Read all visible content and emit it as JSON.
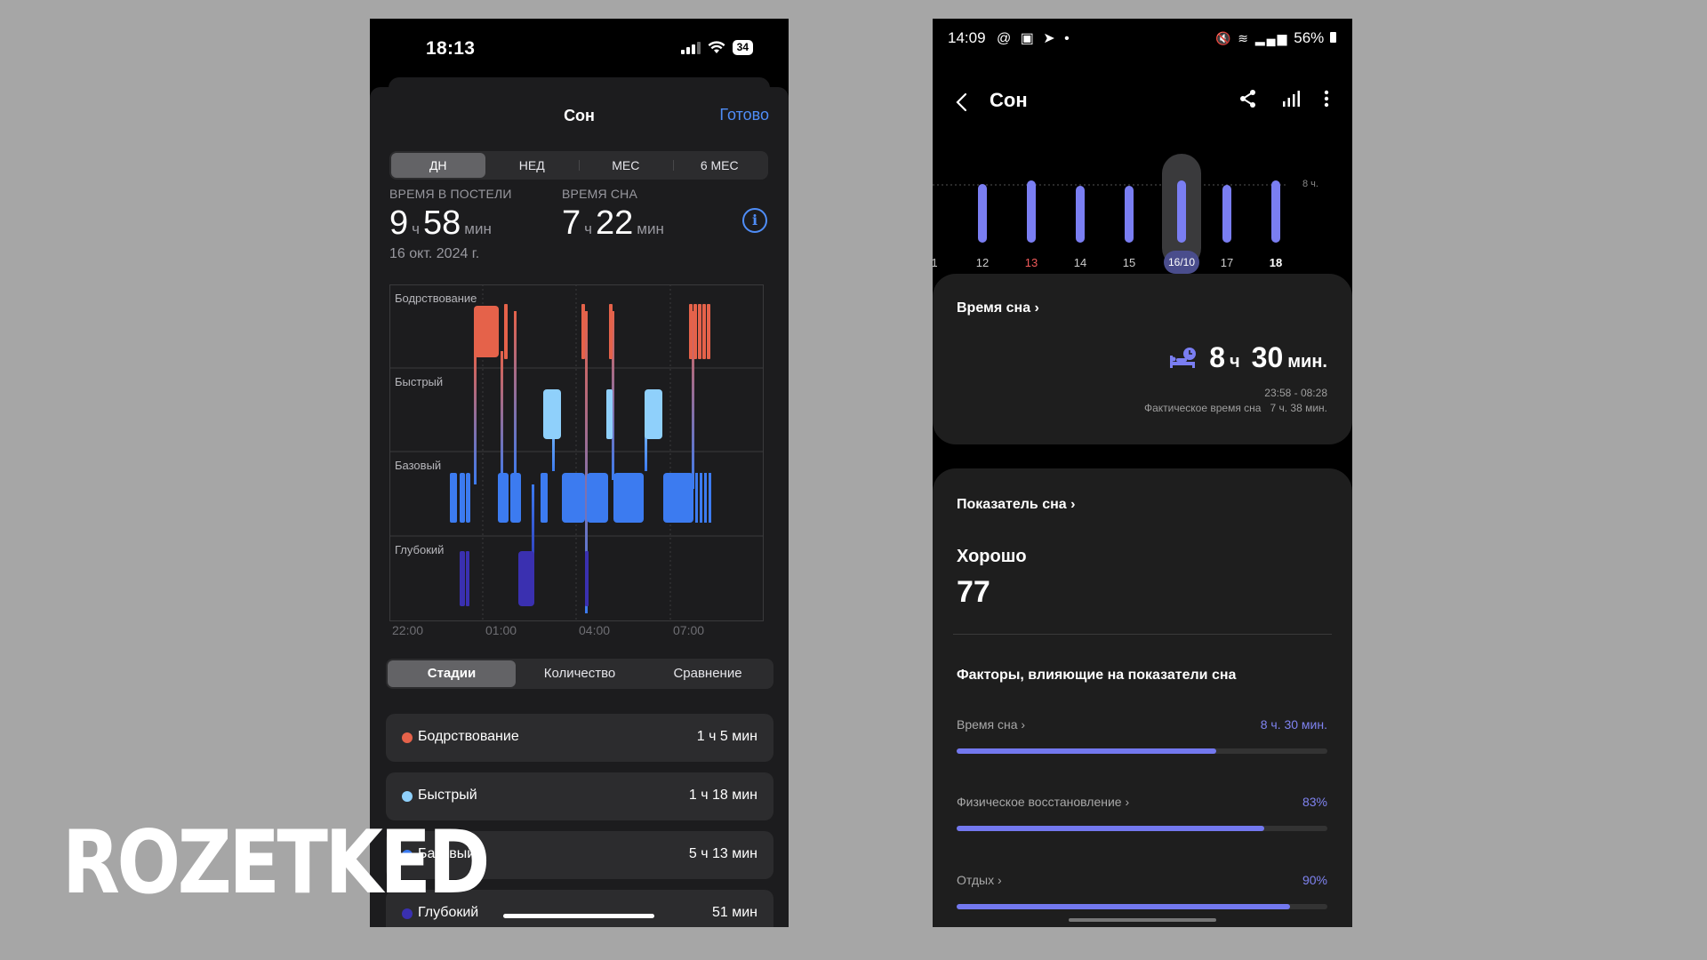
{
  "iphone": {
    "status": {
      "time": "18:13",
      "battery": "34"
    },
    "title": "Сон",
    "done": "Готово",
    "segments": [
      "ДН",
      "НЕД",
      "МЕС",
      "6 МЕС"
    ],
    "active_segment": 0,
    "in_bed": {
      "label": "ВРЕМЯ В ПОСТЕЛИ",
      "hours": "9",
      "h_unit": "ч",
      "minutes": "58",
      "m_unit": "мин",
      "date": "16 окт. 2024 г."
    },
    "asleep": {
      "label": "ВРЕМЯ СНА",
      "hours": "7",
      "h_unit": "ч",
      "minutes": "22",
      "m_unit": "мин"
    },
    "hypnogram": {
      "stages": [
        "Бодрствование",
        "Быстрый",
        "Базовый",
        "Глубокий"
      ],
      "ticks": [
        "22:00",
        "01:00",
        "04:00",
        "07:00"
      ]
    },
    "tabs": [
      "Стадии",
      "Количество",
      "Сравнение"
    ],
    "active_tab": 0,
    "stage_rows": [
      {
        "name": "Бодрствование",
        "duration": "1 ч 5 мин",
        "color": "#e5624a"
      },
      {
        "name": "Быстрый",
        "duration": "1 ч 18 мин",
        "color": "#8fd0fb"
      },
      {
        "name": "Базовый",
        "duration": "5 ч 13 мин",
        "color": "#3c7bf0"
      },
      {
        "name": "Глубокий",
        "duration": "51 мин",
        "color": "#3a30b0"
      }
    ]
  },
  "samsung": {
    "status": {
      "time": "14:09",
      "battery": "56%"
    },
    "title": "Сон",
    "day_axis": {
      "ref_label": "8 ч.",
      "days": [
        "1",
        "12",
        "13",
        "14",
        "15",
        "16/10",
        "17",
        "18"
      ],
      "selected": "16/10",
      "highlight": "13"
    },
    "sleep_card": {
      "title": "Время сна",
      "hours": "8",
      "h_unit": "ч",
      "minutes": "30",
      "m_unit": "мин.",
      "range": "23:58 - 08:28",
      "actual_label": "Фактическое время сна",
      "actual_value": "7 ч. 38 мин."
    },
    "score_card": {
      "title": "Показатель сна",
      "rating": "Хорошо",
      "score": "77",
      "factors_title": "Факторы, влияющие на показатели сна"
    },
    "factors": [
      {
        "name": "Время сна",
        "value": "8 ч. 30 мин.",
        "level": 0.7
      },
      {
        "name": "Физическое восстановление",
        "value": "83%",
        "level": 0.83
      },
      {
        "name": "Отдых",
        "value": "90%",
        "level": 0.9
      }
    ]
  },
  "watermark": "ROZETKED"
}
